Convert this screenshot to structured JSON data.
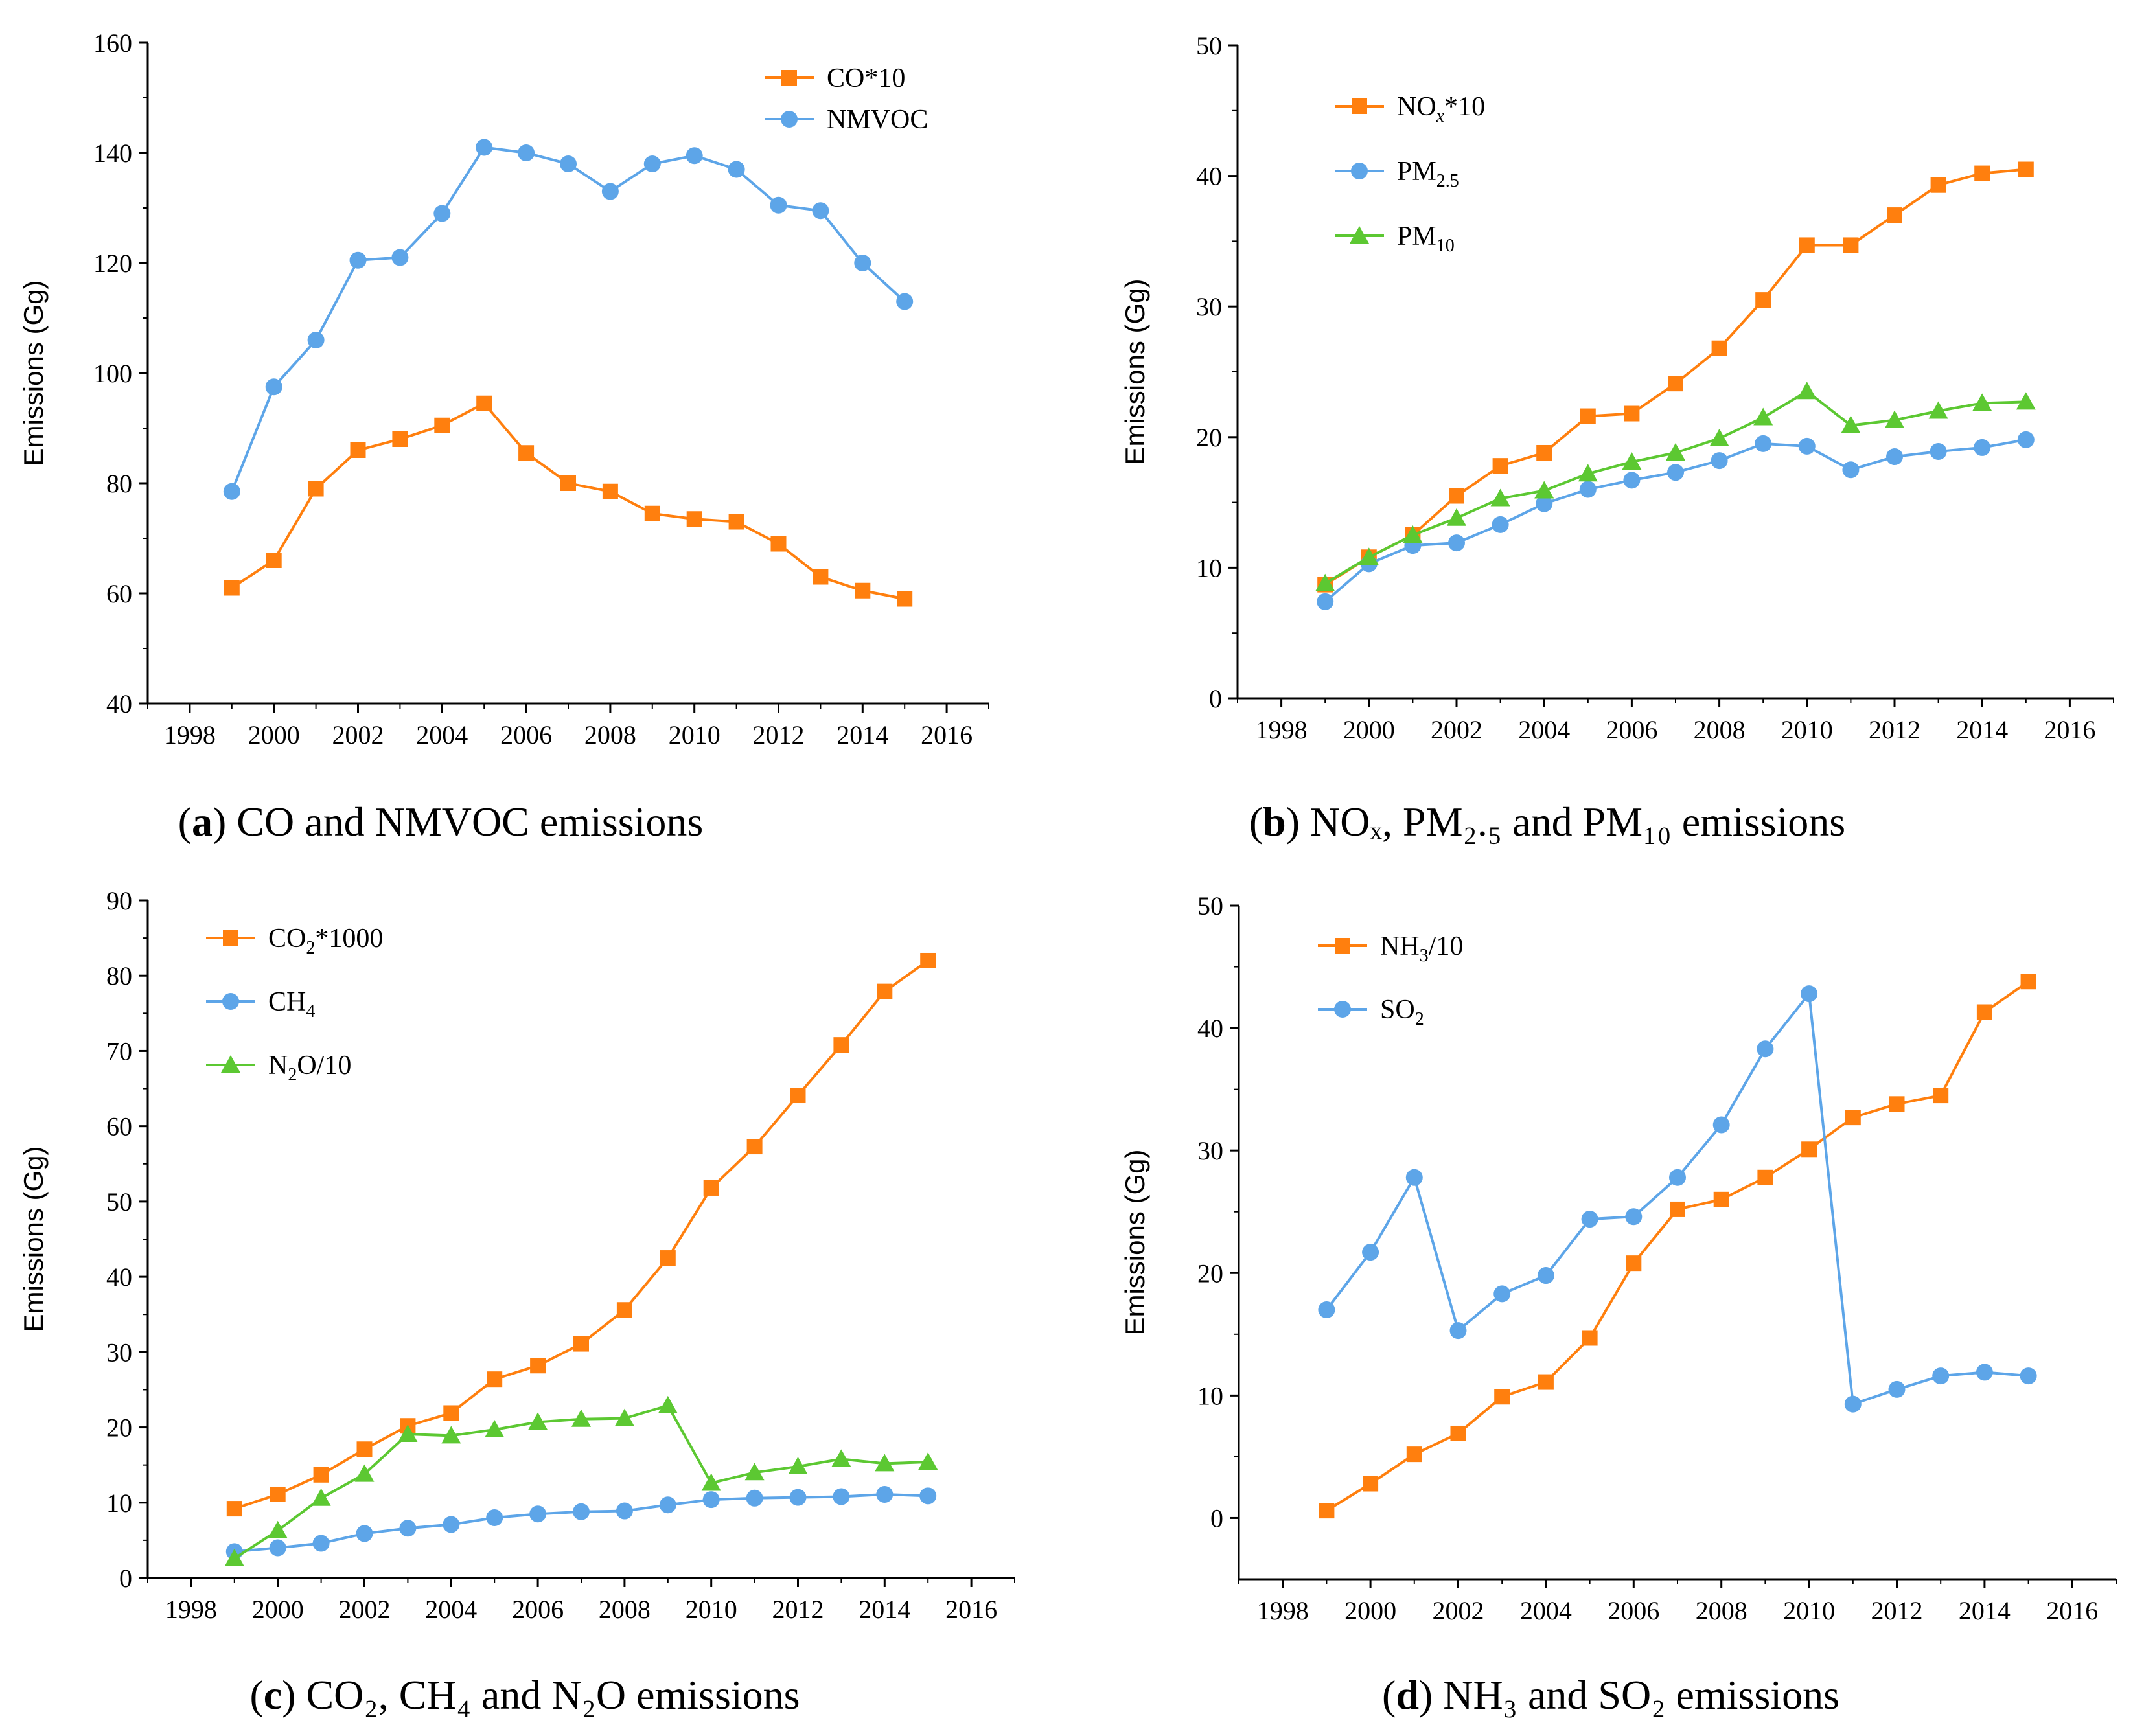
{
  "figure": {
    "panels": [
      {
        "id": "a",
        "caption": {
          "label": "a",
          "text": "CO and NMVOC emissions"
        }
      },
      {
        "id": "b",
        "caption": {
          "label": "b",
          "text": "NOₓ, PM₂.₅ and PM₁₀ emissions"
        }
      },
      {
        "id": "c",
        "caption": {
          "label": "c",
          "text": "CO₂, CH₄ and N₂O emissions"
        }
      },
      {
        "id": "d",
        "caption": {
          "label": "d",
          "text": "NH₃ and SO₂ emissions"
        }
      }
    ]
  },
  "colors": {
    "orange": "#FF7F0E",
    "blue": "#5DA5E8",
    "green": "#5CC832",
    "axis": "#000000"
  },
  "chart_data": [
    {
      "type": "line",
      "ylabel": "Emissions (Gg)",
      "xlabel": "",
      "xlim": [
        1997,
        2017
      ],
      "ylim": [
        40,
        160
      ],
      "xticks": [
        1998,
        2000,
        2002,
        2004,
        2006,
        2008,
        2010,
        2012,
        2014,
        2016
      ],
      "yticks": [
        40,
        60,
        80,
        100,
        120,
        140,
        160
      ],
      "legend_position": "top-right",
      "x": [
        1999,
        2000,
        2001,
        2002,
        2003,
        2004,
        2005,
        2006,
        2007,
        2008,
        2009,
        2010,
        2011,
        2012,
        2013,
        2014,
        2015
      ],
      "series": [
        {
          "name": "CO*10",
          "name_base": "CO*10",
          "name_sub": "",
          "name_tail": "",
          "color": "orange",
          "marker": "square",
          "values": [
            61,
            66,
            79,
            86,
            88,
            90.5,
            94.5,
            85.5,
            80,
            78.5,
            74.5,
            73.5,
            73,
            69,
            63,
            60.5,
            59
          ]
        },
        {
          "name": "NMVOC",
          "name_base": "NMVOC",
          "name_sub": "",
          "name_tail": "",
          "color": "blue",
          "marker": "circle",
          "values": [
            78.5,
            97.5,
            106,
            120.5,
            121,
            129,
            141,
            140,
            138,
            133,
            138,
            139.5,
            137,
            130.5,
            129.5,
            120,
            113
          ]
        }
      ]
    },
    {
      "type": "line",
      "ylabel": "Emissions (Gg)",
      "xlabel": "",
      "xlim": [
        1997,
        2017
      ],
      "ylim": [
        0,
        50
      ],
      "xticks": [
        1998,
        2000,
        2002,
        2004,
        2006,
        2008,
        2010,
        2012,
        2014,
        2016
      ],
      "yticks": [
        0,
        10,
        20,
        30,
        40,
        50
      ],
      "legend_position": "top-left",
      "x": [
        1999,
        2000,
        2001,
        2002,
        2003,
        2004,
        2005,
        2006,
        2007,
        2008,
        2009,
        2010,
        2011,
        2012,
        2013,
        2014,
        2015
      ],
      "series": [
        {
          "name": "NOx*10",
          "name_base": "NO",
          "name_sub": "x",
          "name_tail": "*10",
          "color": "orange",
          "marker": "square",
          "values": [
            8.7,
            10.8,
            12.5,
            15.5,
            17.8,
            18.8,
            21.6,
            21.8,
            24.1,
            26.8,
            30.5,
            34.7,
            34.7,
            37.0,
            39.3,
            40.2,
            40.5
          ]
        },
        {
          "name": "PM2.5",
          "name_base": "PM",
          "name_sub": "2.5",
          "name_tail": "",
          "color": "blue",
          "marker": "circle",
          "values": [
            7.4,
            10.3,
            11.7,
            11.9,
            13.3,
            14.9,
            16.0,
            16.7,
            17.3,
            18.2,
            19.5,
            19.3,
            17.5,
            18.5,
            18.9,
            19.2,
            19.8
          ]
        },
        {
          "name": "PM10",
          "name_base": "PM",
          "name_sub": "10",
          "name_tail": "",
          "color": "green",
          "marker": "triangle",
          "values": [
            8.8,
            10.8,
            12.5,
            13.8,
            15.3,
            15.9,
            17.2,
            18.1,
            18.8,
            19.9,
            21.5,
            23.5,
            20.9,
            21.3,
            22.0,
            22.6,
            22.7
          ]
        }
      ]
    },
    {
      "type": "line",
      "ylabel": "Emissions (Gg)",
      "xlabel": "",
      "xlim": [
        1997,
        2017
      ],
      "ylim": [
        0,
        90
      ],
      "xticks": [
        1998,
        2000,
        2002,
        2004,
        2006,
        2008,
        2010,
        2012,
        2014,
        2016
      ],
      "yticks": [
        0,
        10,
        20,
        30,
        40,
        50,
        60,
        70,
        80,
        90
      ],
      "legend_position": "top-left",
      "x": [
        1999,
        2000,
        2001,
        2002,
        2003,
        2004,
        2005,
        2006,
        2007,
        2008,
        2009,
        2010,
        2011,
        2012,
        2013,
        2014,
        2015
      ],
      "series": [
        {
          "name": "CO2*1000",
          "name_base": "CO",
          "name_sub": "2",
          "name_tail": "*1000",
          "color": "orange",
          "marker": "square",
          "values": [
            9.2,
            11.1,
            13.7,
            17.1,
            20.2,
            21.9,
            26.4,
            28.2,
            31.1,
            35.6,
            42.5,
            51.8,
            57.3,
            64.1,
            70.8,
            77.9,
            82.0
          ]
        },
        {
          "name": "CH4",
          "name_base": "CH",
          "name_sub": "4",
          "name_tail": "",
          "color": "blue",
          "marker": "circle",
          "values": [
            3.5,
            4.0,
            4.6,
            5.9,
            6.6,
            7.1,
            8.0,
            8.5,
            8.8,
            8.9,
            9.7,
            10.4,
            10.6,
            10.7,
            10.8,
            11.1,
            10.9
          ]
        },
        {
          "name": "N2O/10",
          "name_base": "N",
          "name_sub": "2",
          "name_tail": "O/10",
          "color": "green",
          "marker": "triangle",
          "values": [
            2.6,
            6.3,
            10.6,
            13.8,
            19.1,
            18.9,
            19.7,
            20.7,
            21.1,
            21.2,
            22.9,
            12.6,
            14.0,
            14.8,
            15.8,
            15.2,
            15.4
          ]
        }
      ]
    },
    {
      "type": "line",
      "ylabel": "Emissions (Gg)",
      "xlabel": "",
      "xlim": [
        1997,
        2017
      ],
      "ylim": [
        -5,
        50
      ],
      "xticks": [
        1998,
        2000,
        2002,
        2004,
        2006,
        2008,
        2010,
        2012,
        2014,
        2016
      ],
      "yticks": [
        0,
        10,
        20,
        30,
        40,
        50
      ],
      "legend_position": "top-left",
      "x": [
        1999,
        2000,
        2001,
        2002,
        2003,
        2004,
        2005,
        2006,
        2007,
        2008,
        2009,
        2010,
        2011,
        2012,
        2013,
        2014,
        2015
      ],
      "series": [
        {
          "name": "NH3/10",
          "name_base": "NH",
          "name_sub": "3",
          "name_tail": "/10",
          "color": "orange",
          "marker": "square",
          "values": [
            0.6,
            2.8,
            5.2,
            6.9,
            9.9,
            11.1,
            14.7,
            20.8,
            25.2,
            26.0,
            27.8,
            30.1,
            32.7,
            33.8,
            34.5,
            41.3,
            43.8
          ]
        },
        {
          "name": "SO2",
          "name_base": "SO",
          "name_sub": "2",
          "name_tail": "",
          "color": "blue",
          "marker": "circle",
          "values": [
            17.0,
            21.7,
            27.8,
            15.3,
            18.3,
            19.8,
            24.4,
            24.6,
            27.8,
            32.1,
            38.3,
            42.8,
            9.3,
            10.5,
            11.6,
            11.9,
            11.6
          ]
        }
      ]
    }
  ]
}
